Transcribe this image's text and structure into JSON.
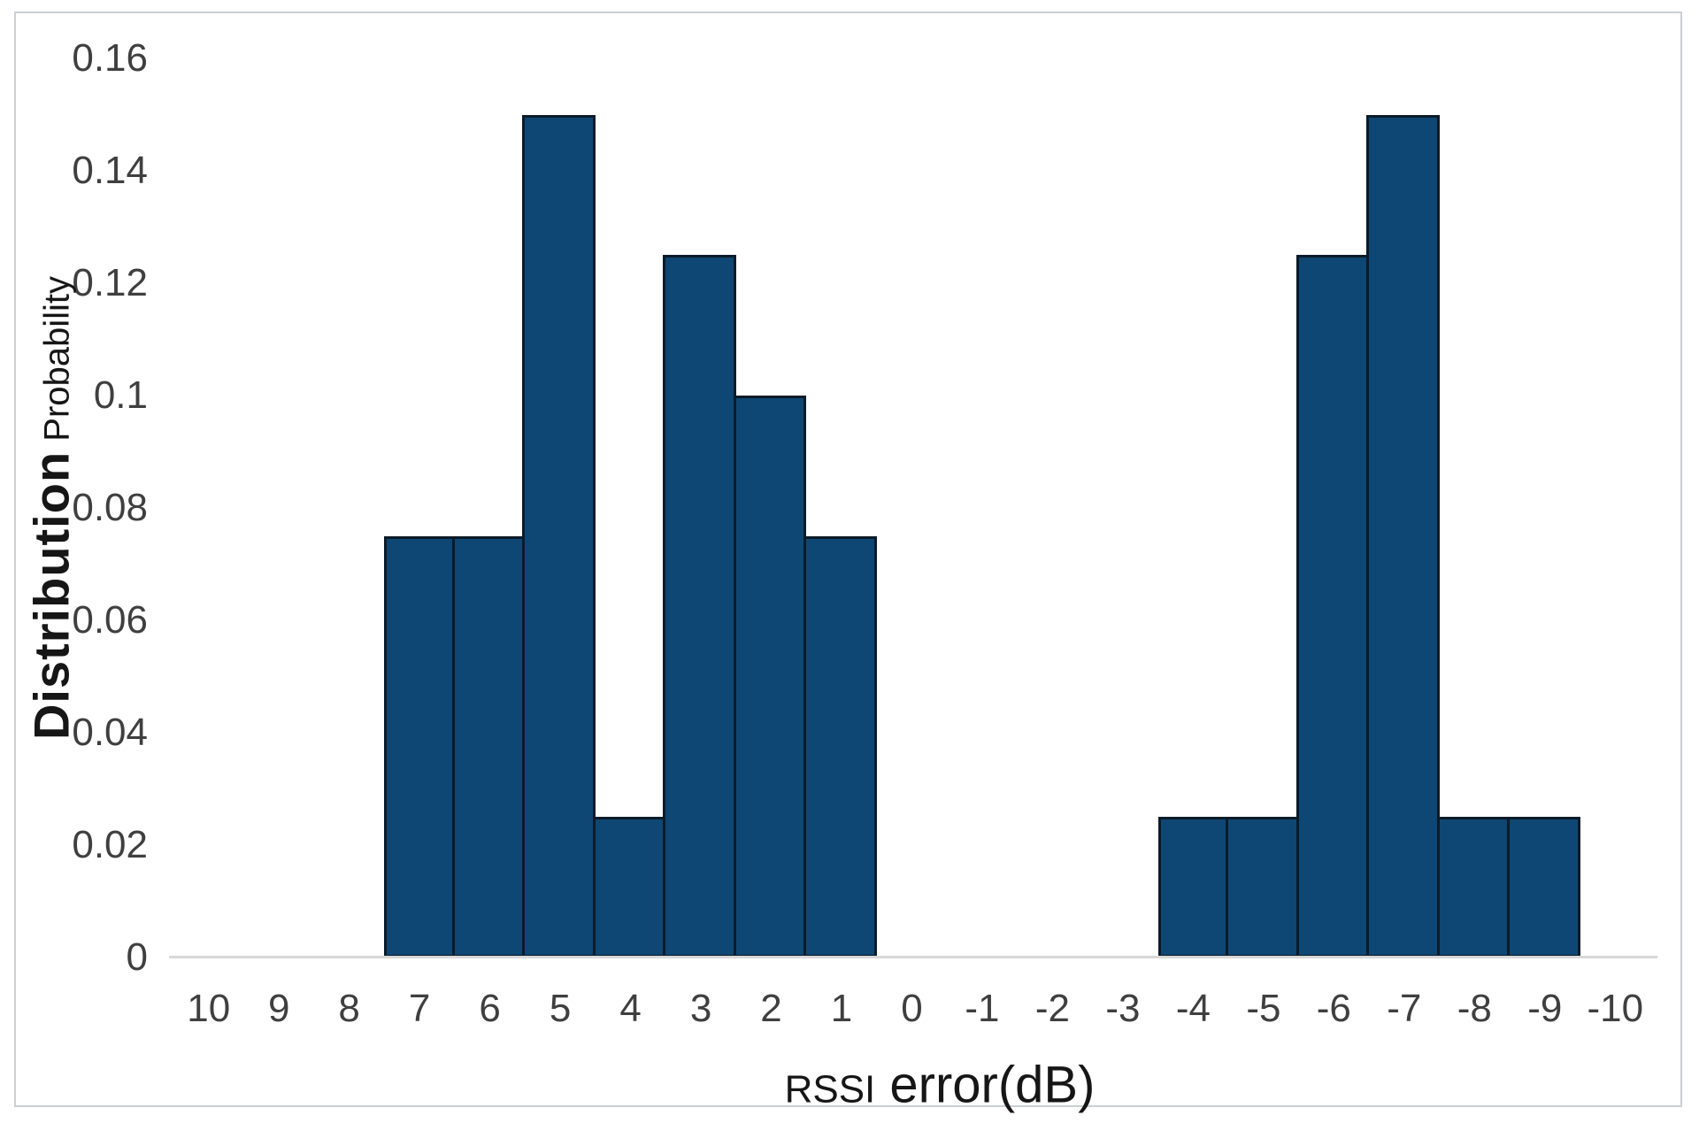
{
  "figure": {
    "background": "#ffffff",
    "border_color": "#cbcfd3"
  },
  "chart_data": {
    "type": "bar",
    "title": "",
    "categories": [
      "10",
      "9",
      "8",
      "7",
      "6",
      "5",
      "4",
      "3",
      "2",
      "1",
      "0",
      "-1",
      "-2",
      "-3",
      "-4",
      "-5",
      "-6",
      "-7",
      "-8",
      "-9",
      "-10"
    ],
    "values": [
      0,
      0,
      0,
      0.075,
      0.075,
      0.15,
      0.025,
      0.125,
      0.1,
      0.075,
      0,
      0,
      0,
      0,
      0.025,
      0.025,
      0.125,
      0.15,
      0.025,
      0.025,
      0
    ],
    "xlabel": "RSSI error(dB)",
    "xlabel_word_small": "RSSI",
    "xlabel_word_large": " error(dB)",
    "ylabel": "Distribution Probability",
    "ylabel_word_large": "Distribution",
    "ylabel_word_small": " Probability",
    "y_ticks": [
      "0",
      "0.02",
      "0.04",
      "0.06",
      "0.08",
      "0.1",
      "0.12",
      "0.14",
      "0.16"
    ],
    "ylim": [
      0,
      0.16
    ],
    "grid": false,
    "legend_position": "none",
    "bar_fill": "#0e4773",
    "bar_border": "#0c1b29",
    "bar_gap_percent": 0,
    "axis_line_color": "#d8d8d8",
    "tick_color": "#3f3f3f"
  }
}
